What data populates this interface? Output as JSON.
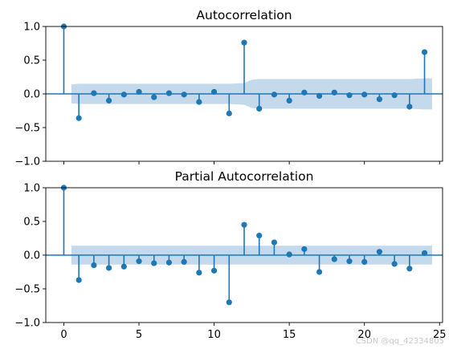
{
  "chart_data": [
    {
      "type": "stem",
      "title": "Autocorrelation",
      "xlim": [
        -1.2,
        25.2
      ],
      "ylim": [
        -1.0,
        1.0
      ],
      "yticks": [
        1.0,
        0.5,
        0.0,
        -0.5,
        -1.0
      ],
      "ytick_labels": [
        "1.0",
        "0.5",
        "0.0",
        "−0.5",
        "−1.0"
      ],
      "xticks": [
        0,
        5,
        10,
        15,
        20,
        25
      ],
      "xtick_labels": [],
      "lags": [
        0,
        1,
        2,
        3,
        4,
        5,
        6,
        7,
        8,
        9,
        10,
        11,
        12,
        13,
        14,
        15,
        16,
        17,
        18,
        19,
        20,
        21,
        22,
        23,
        24
      ],
      "values": [
        1.0,
        -0.36,
        0.01,
        -0.1,
        -0.01,
        0.03,
        -0.05,
        0.01,
        -0.01,
        -0.12,
        0.03,
        -0.29,
        0.76,
        -0.22,
        -0.01,
        -0.1,
        0.02,
        -0.03,
        0.02,
        -0.02,
        -0.01,
        -0.08,
        -0.02,
        -0.19,
        0.62
      ],
      "confidence_band": {
        "lags": [
          0.5,
          1,
          2,
          3,
          4,
          5,
          6,
          7,
          8,
          9,
          10,
          11,
          12,
          12.5,
          13,
          14,
          15,
          16,
          17,
          18,
          19,
          20,
          21,
          22,
          23,
          24,
          24.5
        ],
        "upper": [
          0.14,
          0.15,
          0.15,
          0.15,
          0.15,
          0.15,
          0.15,
          0.15,
          0.15,
          0.15,
          0.15,
          0.15,
          0.16,
          0.21,
          0.22,
          0.22,
          0.22,
          0.22,
          0.22,
          0.22,
          0.22,
          0.22,
          0.22,
          0.22,
          0.22,
          0.23,
          0.23
        ]
      }
    },
    {
      "type": "stem",
      "title": "Partial Autocorrelation",
      "xlim": [
        -1.2,
        25.2
      ],
      "ylim": [
        -1.0,
        1.0
      ],
      "yticks": [
        1.0,
        0.5,
        0.0,
        -0.5,
        -1.0
      ],
      "ytick_labels": [
        "1.0",
        "0.5",
        "0.0",
        "−0.5",
        "−1.0"
      ],
      "xticks": [
        0,
        5,
        10,
        15,
        20,
        25
      ],
      "xtick_labels": [
        "0",
        "5",
        "10",
        "15",
        "20",
        "25"
      ],
      "lags": [
        0,
        1,
        2,
        3,
        4,
        5,
        6,
        7,
        8,
        9,
        10,
        11,
        12,
        13,
        14,
        15,
        16,
        17,
        18,
        19,
        20,
        21,
        22,
        23,
        24
      ],
      "values": [
        1.0,
        -0.37,
        -0.15,
        -0.19,
        -0.17,
        -0.09,
        -0.12,
        -0.11,
        -0.1,
        -0.26,
        -0.23,
        -0.7,
        0.45,
        0.29,
        0.19,
        0.01,
        0.09,
        -0.25,
        -0.06,
        -0.09,
        -0.1,
        0.05,
        -0.13,
        -0.2,
        0.03
      ],
      "confidence_band": {
        "lags": [
          0.5,
          24.5
        ],
        "upper": [
          0.14,
          0.14
        ]
      }
    }
  ],
  "colors": {
    "stem": "#1f77b4",
    "band": "#c5d9ec",
    "zero_line": "#1f77b4"
  },
  "watermark": "CSDN @qq_42334805"
}
